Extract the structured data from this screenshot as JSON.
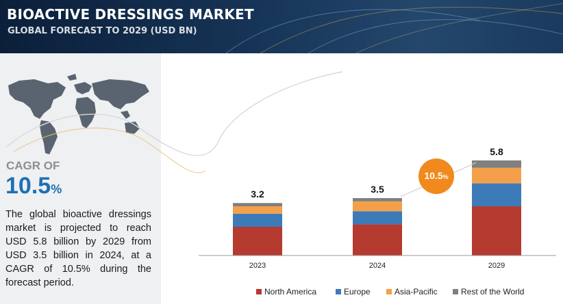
{
  "header": {
    "title": "BIOACTIVE DRESSINGS MARKET",
    "subtitle": "GLOBAL FORECAST TO 2029 (USD BN)"
  },
  "left_panel": {
    "cagr_label": "CAGR OF",
    "cagr_value": "10.5",
    "cagr_unit": "%",
    "description": "The global bioactive dressings market is projected to reach USD 5.8 billion by 2029 from USD 3.5 billion in 2024, at a CAGR of 10.5% during the forecast period."
  },
  "callout": {
    "value": "10.5",
    "unit": "%"
  },
  "colors": {
    "north_america": "#b53a30",
    "europe": "#3d7ab8",
    "asia_pacific": "#f4a04a",
    "rest_of_world": "#808080",
    "callout": "#f08a1c",
    "cagr_text": "#1f6fb4"
  },
  "chart_data": {
    "type": "bar",
    "stacked": true,
    "categories": [
      "2023",
      "2024",
      "2029"
    ],
    "totals": [
      "3.2",
      "3.5",
      "5.8"
    ],
    "series": [
      {
        "name": "North America",
        "values": [
          1.75,
          1.9,
          3.0
        ]
      },
      {
        "name": "Europe",
        "values": [
          0.8,
          0.8,
          1.4
        ]
      },
      {
        "name": "Asia-Pacific",
        "values": [
          0.45,
          0.6,
          0.95
        ]
      },
      {
        "name": "Rest of the World",
        "values": [
          0.2,
          0.2,
          0.45
        ]
      }
    ],
    "legend": [
      "North America",
      "Europe",
      "Asia-Pacific",
      "Rest of the World"
    ],
    "legend_position": "bottom",
    "grid": false,
    "ylim": [
      0,
      6.5
    ]
  }
}
